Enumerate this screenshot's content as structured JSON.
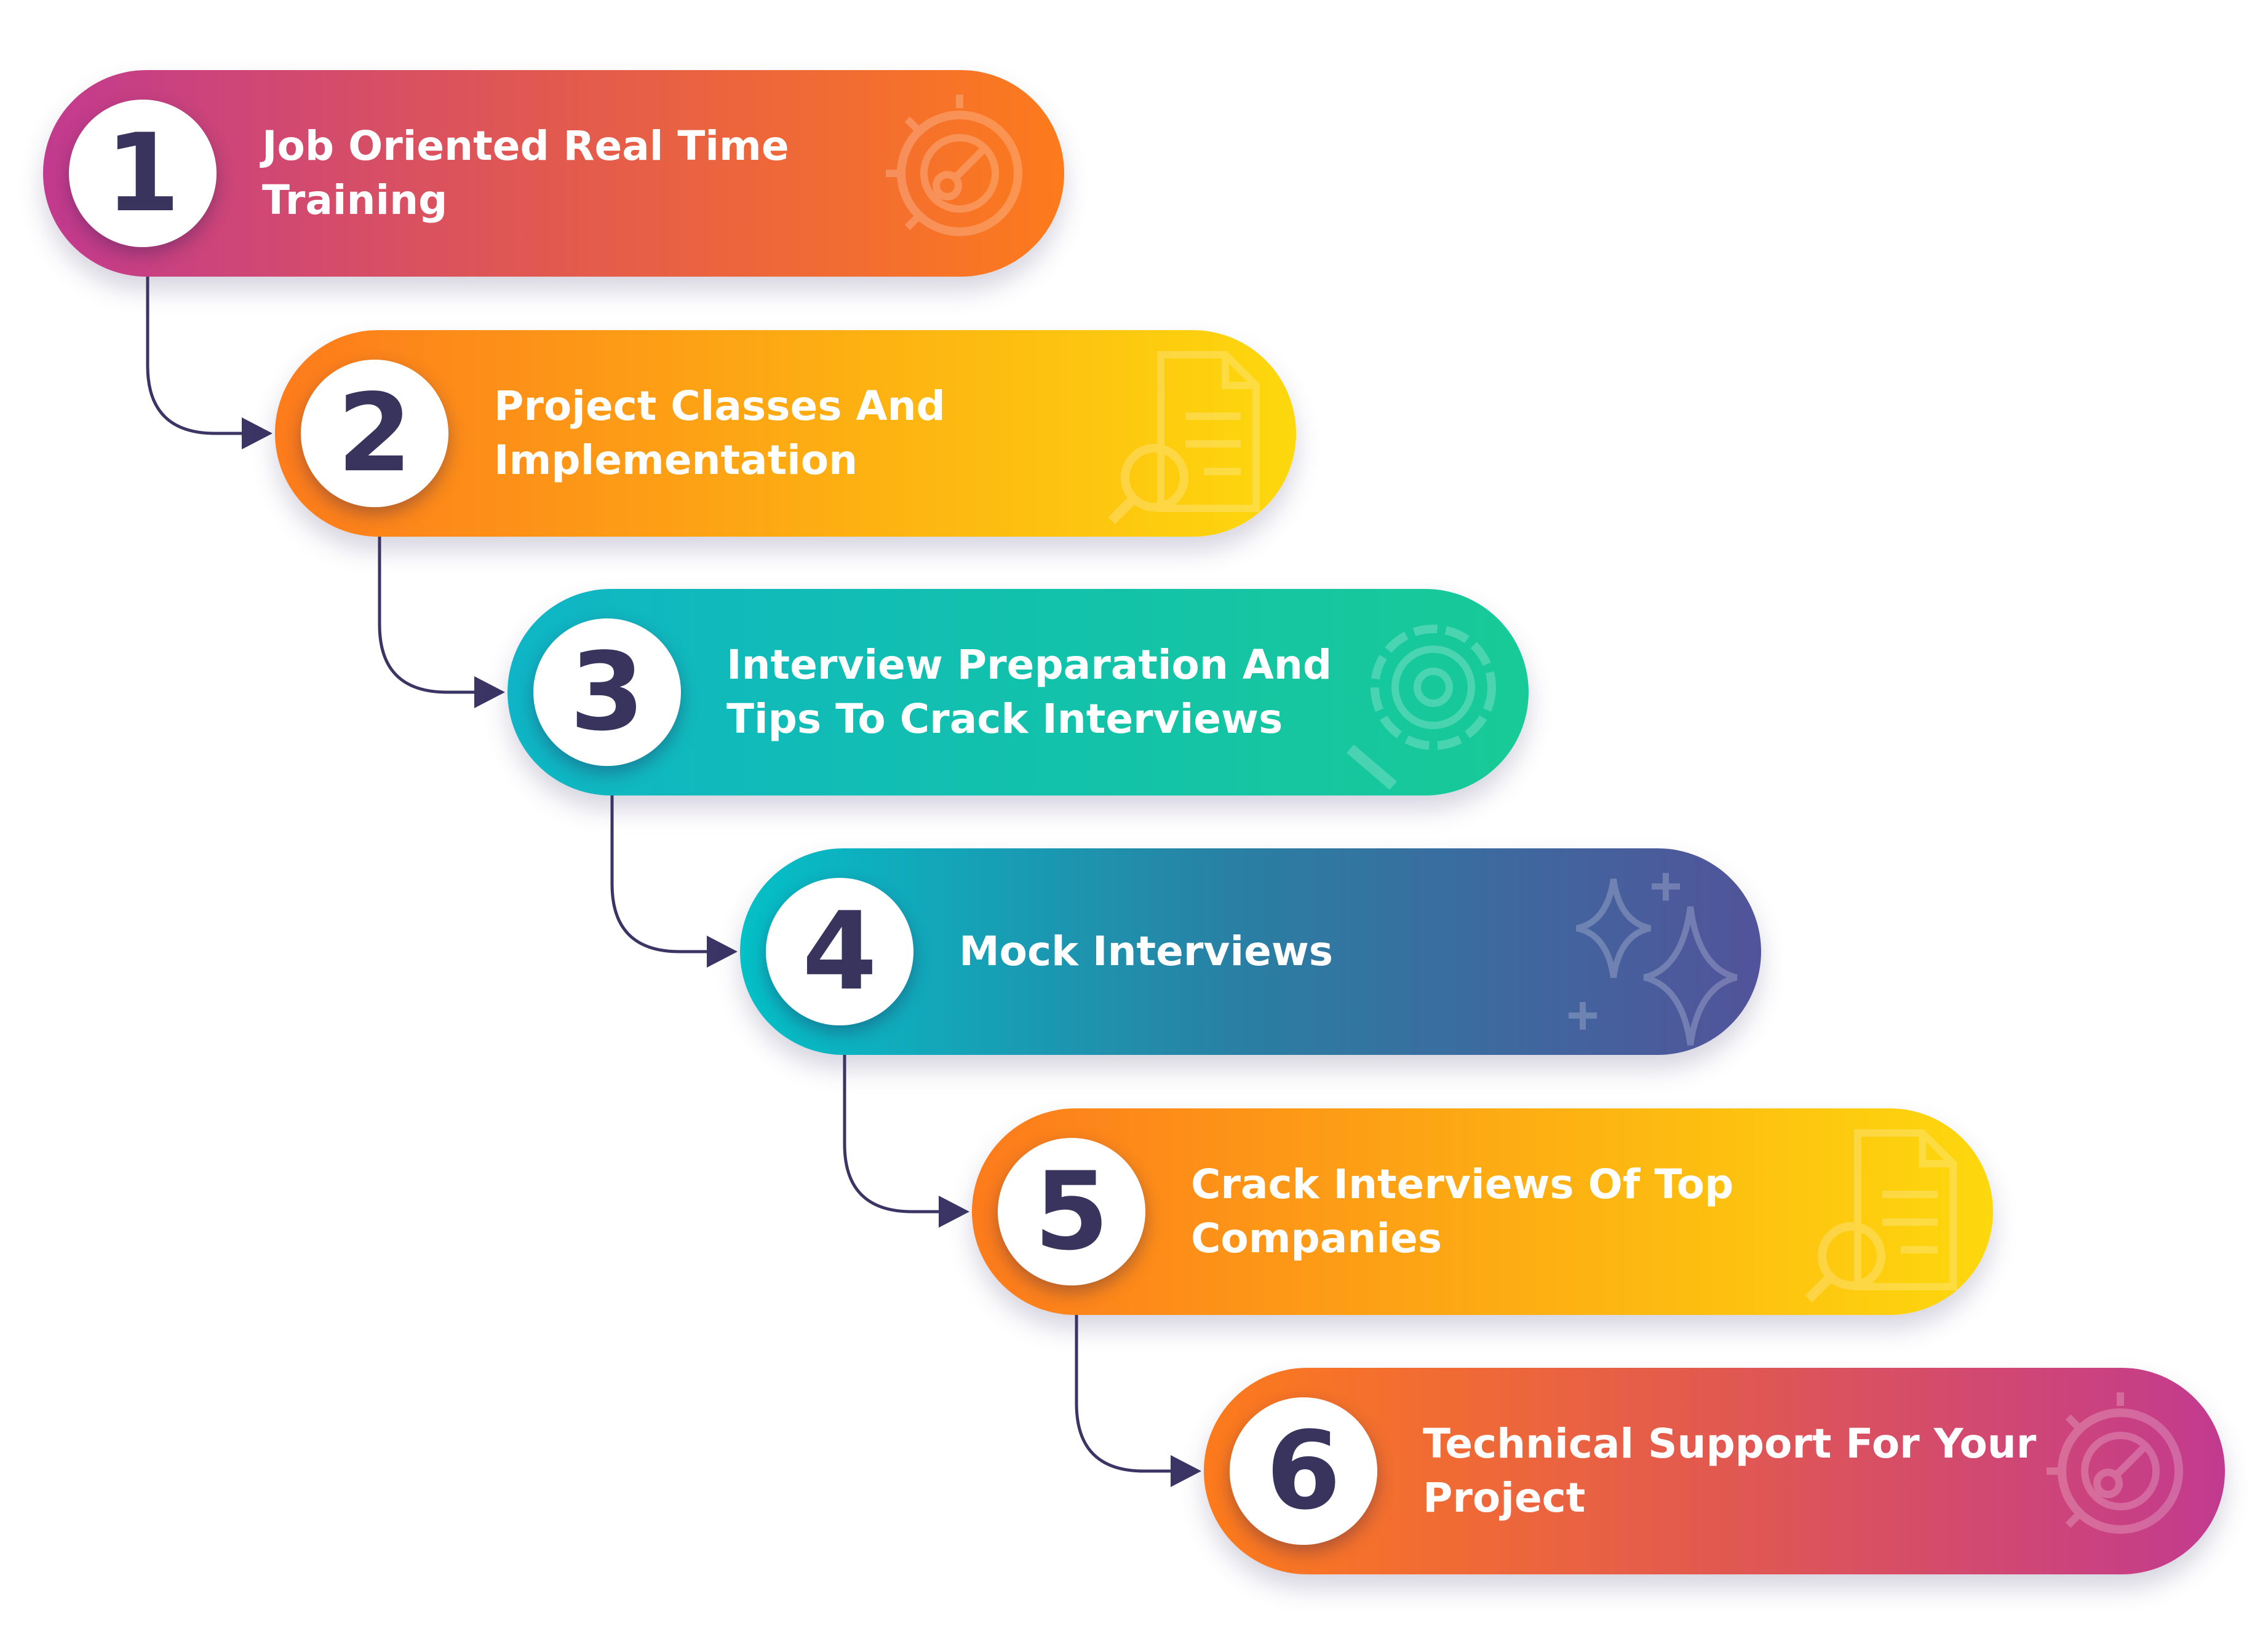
{
  "colors": {
    "number": "#38345e",
    "connector": "#3a3565",
    "gradients": {
      "magenta-orange": [
        "#c23a8f",
        "#e2594f",
        "#fd7b1c"
      ],
      "orange-yellow": [
        "#fd7b1c",
        "#fdaa13",
        "#fdd80d"
      ],
      "teal-green": [
        "#0fb5c6",
        "#12c1ac",
        "#18ca97"
      ],
      "teal-indigo": [
        "#04c0c7",
        "#2a7ea3",
        "#52539a"
      ],
      "orange-magenta": [
        "#fd7b1c",
        "#e2594f",
        "#c23a8f"
      ]
    }
  },
  "steps": [
    {
      "number": "1",
      "label": "Job Oriented Real Time Training",
      "gradient": "magenta-orange",
      "icon": "target-icon"
    },
    {
      "number": "2",
      "label": "Project Classes And Implementation",
      "gradient": "orange-yellow",
      "icon": "document-search-icon"
    },
    {
      "number": "3",
      "label": "Interview Preparation And Tips To Crack Interviews",
      "gradient": "teal-green",
      "icon": "gear-wrench-icon"
    },
    {
      "number": "4",
      "label": "Mock Interviews",
      "gradient": "teal-indigo",
      "icon": "sparkle-icon"
    },
    {
      "number": "5",
      "label": "Crack Interviews Of Top Companies",
      "gradient": "orange-yellow",
      "icon": "document-search-icon"
    },
    {
      "number": "6",
      "label": "Technical Support For Your Project",
      "gradient": "orange-magenta",
      "icon": "target-icon"
    }
  ]
}
